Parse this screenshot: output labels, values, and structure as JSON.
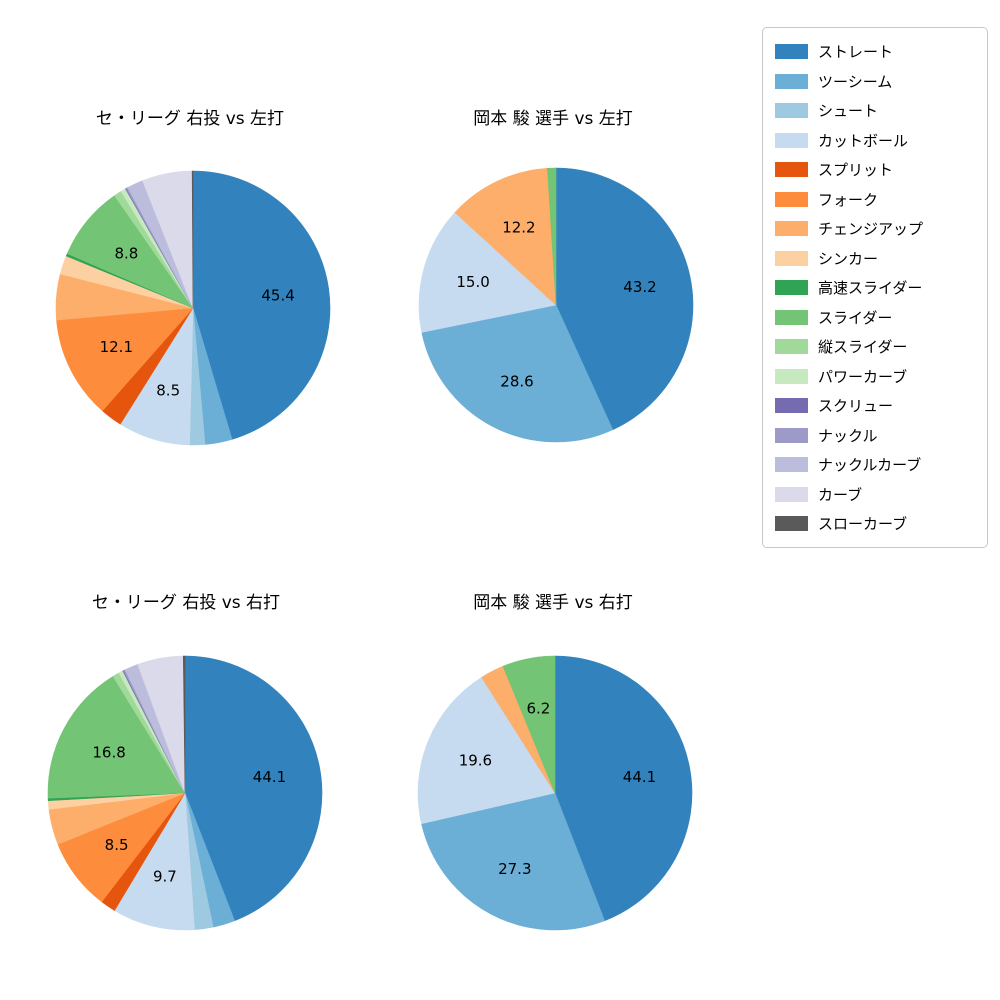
{
  "chart_data": [
    {
      "type": "pie",
      "title": "セ・リーグ 右投 vs 左打",
      "start_angle_deg": 90,
      "direction": "clockwise",
      "slices": [
        {
          "name": "ストレート",
          "value": 45.4,
          "label": "45.4"
        },
        {
          "name": "ツーシーム",
          "value": 3.2,
          "label": ""
        },
        {
          "name": "シュート",
          "value": 1.8,
          "label": ""
        },
        {
          "name": "カットボール",
          "value": 8.5,
          "label": "8.5"
        },
        {
          "name": "スプリット",
          "value": 2.6,
          "label": ""
        },
        {
          "name": "フォーク",
          "value": 12.1,
          "label": "12.1"
        },
        {
          "name": "チェンジアップ",
          "value": 5.4,
          "label": ""
        },
        {
          "name": "シンカー",
          "value": 2.2,
          "label": ""
        },
        {
          "name": "高速スライダー",
          "value": 0.3,
          "label": ""
        },
        {
          "name": "スライダー",
          "value": 8.8,
          "label": "8.8"
        },
        {
          "name": "縦スライダー",
          "value": 0.9,
          "label": ""
        },
        {
          "name": "パワーカーブ",
          "value": 0.6,
          "label": ""
        },
        {
          "name": "スクリュー",
          "value": 0.1,
          "label": ""
        },
        {
          "name": "ナックル",
          "value": 0.2,
          "label": ""
        },
        {
          "name": "ナックルカーブ",
          "value": 1.9,
          "label": ""
        },
        {
          "name": "カーブ",
          "value": 5.9,
          "label": ""
        },
        {
          "name": "スローカーブ",
          "value": 0.1,
          "label": ""
        }
      ]
    },
    {
      "type": "pie",
      "title": "岡本 駿 選手 vs 左打",
      "start_angle_deg": 90,
      "direction": "clockwise",
      "slices": [
        {
          "name": "ストレート",
          "value": 43.2,
          "label": "43.2"
        },
        {
          "name": "ツーシーム",
          "value": 28.6,
          "label": "28.6"
        },
        {
          "name": "カットボール",
          "value": 15.0,
          "label": "15.0"
        },
        {
          "name": "チェンジアップ",
          "value": 12.2,
          "label": "12.2"
        },
        {
          "name": "スライダー",
          "value": 1.0,
          "label": ""
        }
      ]
    },
    {
      "type": "pie",
      "title": "セ・リーグ 右投 vs 右打",
      "start_angle_deg": 90,
      "direction": "clockwise",
      "slices": [
        {
          "name": "ストレート",
          "value": 44.1,
          "label": "44.1"
        },
        {
          "name": "ツーシーム",
          "value": 2.6,
          "label": ""
        },
        {
          "name": "シュート",
          "value": 2.2,
          "label": ""
        },
        {
          "name": "カットボール",
          "value": 9.7,
          "label": "9.7"
        },
        {
          "name": "スプリット",
          "value": 1.8,
          "label": ""
        },
        {
          "name": "フォーク",
          "value": 8.5,
          "label": "8.5"
        },
        {
          "name": "チェンジアップ",
          "value": 4.2,
          "label": ""
        },
        {
          "name": "シンカー",
          "value": 1.0,
          "label": ""
        },
        {
          "name": "高速スライダー",
          "value": 0.3,
          "label": ""
        },
        {
          "name": "スライダー",
          "value": 16.8,
          "label": "16.8"
        },
        {
          "name": "縦スライダー",
          "value": 0.8,
          "label": ""
        },
        {
          "name": "パワーカーブ",
          "value": 0.5,
          "label": ""
        },
        {
          "name": "スクリュー",
          "value": 0.1,
          "label": ""
        },
        {
          "name": "ナックル",
          "value": 0.2,
          "label": ""
        },
        {
          "name": "ナックルカーブ",
          "value": 1.6,
          "label": ""
        },
        {
          "name": "カーブ",
          "value": 5.4,
          "label": ""
        },
        {
          "name": "スローカーブ",
          "value": 0.2,
          "label": ""
        }
      ]
    },
    {
      "type": "pie",
      "title": "岡本 駿 選手 vs 右打",
      "start_angle_deg": 90,
      "direction": "clockwise",
      "slices": [
        {
          "name": "ストレート",
          "value": 44.1,
          "label": "44.1"
        },
        {
          "name": "ツーシーム",
          "value": 27.3,
          "label": "27.3"
        },
        {
          "name": "カットボール",
          "value": 19.6,
          "label": "19.6"
        },
        {
          "name": "チェンジアップ",
          "value": 2.8,
          "label": ""
        },
        {
          "name": "スライダー",
          "value": 6.2,
          "label": "6.2"
        }
      ]
    }
  ],
  "legend": {
    "items": [
      {
        "label": "ストレート",
        "color": "#3182bd"
      },
      {
        "label": "ツーシーム",
        "color": "#6baed6"
      },
      {
        "label": "シュート",
        "color": "#9ecae1"
      },
      {
        "label": "カットボール",
        "color": "#c6dbef"
      },
      {
        "label": "スプリット",
        "color": "#e6550d"
      },
      {
        "label": "フォーク",
        "color": "#fd8d3c"
      },
      {
        "label": "チェンジアップ",
        "color": "#fdae6b"
      },
      {
        "label": "シンカー",
        "color": "#fdd0a2"
      },
      {
        "label": "高速スライダー",
        "color": "#31a354"
      },
      {
        "label": "スライダー",
        "color": "#74c476"
      },
      {
        "label": "縦スライダー",
        "color": "#a1d99b"
      },
      {
        "label": "パワーカーブ",
        "color": "#c7e9c0"
      },
      {
        "label": "スクリュー",
        "color": "#756bb1"
      },
      {
        "label": "ナックル",
        "color": "#9e9ac8"
      },
      {
        "label": "ナックルカーブ",
        "color": "#bcbddc"
      },
      {
        "label": "カーブ",
        "color": "#dadaeb"
      },
      {
        "label": "スローカーブ",
        "color": "#5a5a5a"
      }
    ]
  }
}
